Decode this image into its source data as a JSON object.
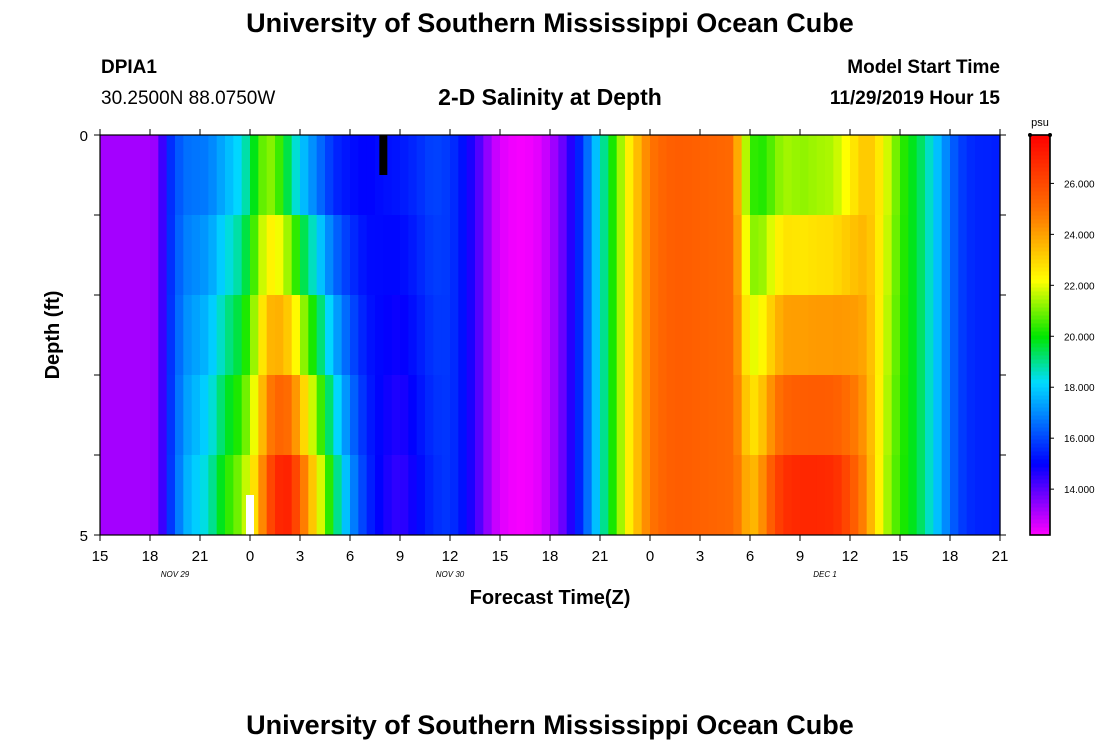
{
  "header": {
    "title": "University of Southern Mississippi Ocean Cube",
    "station_id": "DPIA1",
    "station_coords": "30.2500N 88.0750W",
    "plot_title": "2-D Salinity at Depth",
    "model_start_label": "Model Start Time",
    "model_start_value": "11/29/2019 Hour 15"
  },
  "footer": {
    "title": "University of Southern Mississippi Ocean Cube"
  },
  "chart_data": {
    "type": "heatmap",
    "title": "2-D Salinity at Depth",
    "xlabel": "Forecast Time(Z)",
    "ylabel": "Depth (ft)",
    "x_tick_labels": [
      "15",
      "18",
      "21",
      "0",
      "3",
      "6",
      "9",
      "12",
      "15",
      "18",
      "21",
      "0",
      "3",
      "6",
      "9",
      "12",
      "15",
      "18",
      "21"
    ],
    "x_hours": [
      0,
      3,
      6,
      9,
      12,
      15,
      18,
      21,
      24,
      27,
      30,
      33,
      36,
      39,
      42,
      45,
      48,
      51,
      54
    ],
    "date_labels": [
      {
        "label": "NOV 29",
        "hour": 4.5
      },
      {
        "label": "NOV 30",
        "hour": 21
      },
      {
        "label": "DEC 1",
        "hour": 43.5
      }
    ],
    "y_tick_labels": [
      "0",
      "5"
    ],
    "ylim": [
      0,
      5
    ],
    "depth_layers": 5,
    "colorbar": {
      "unit": "psu",
      "min": 12.2,
      "max": 27.9,
      "tick_values": [
        14.0,
        16.0,
        18.0,
        20.0,
        22.0,
        24.0,
        26.0
      ],
      "tick_labels": [
        "14.000",
        "16.000",
        "18.000",
        "20.000",
        "22.000",
        "24.000",
        "26.000"
      ]
    },
    "salinity_profile": {
      "hours": [
        0,
        3,
        3.5,
        4,
        4.5,
        5,
        6.5,
        7.5,
        8.5,
        9,
        9.5,
        10,
        10.5,
        11,
        11.5,
        12,
        13,
        14,
        15,
        16,
        17,
        18,
        19,
        20,
        21,
        22,
        23,
        23.5,
        24,
        24.5,
        25,
        25.5,
        26,
        26.5,
        27,
        27.5,
        28,
        28.5,
        29,
        29.5,
        30,
        30.5,
        31,
        31.5,
        32,
        32.5,
        33,
        33.5,
        34,
        34.5,
        35,
        36,
        37,
        38,
        38.5,
        39,
        39.5,
        40,
        40.5,
        41,
        41.5,
        42,
        43,
        44,
        44.5,
        45,
        45.5,
        46,
        46.5,
        47,
        47.5,
        48,
        48.5,
        49,
        49.5,
        50,
        50.5,
        51,
        51.5,
        52,
        52.5,
        53,
        54
      ],
      "surface": [
        13.2,
        13.2,
        13.4,
        15.3,
        16.0,
        16.6,
        16.8,
        17.6,
        18.3,
        19.3,
        20.4,
        21.3,
        21.0,
        20.0,
        19.0,
        18.0,
        16.8,
        15.6,
        15.2,
        15.0,
        15.2,
        15.3,
        15.6,
        16.0,
        15.8,
        15.0,
        13.8,
        13.0,
        12.6,
        12.4,
        12.3,
        12.3,
        12.4,
        12.6,
        13.0,
        13.5,
        14.2,
        15.0,
        16.0,
        17.2,
        18.4,
        19.6,
        20.8,
        22.0,
        23.0,
        24.0,
        24.8,
        25.2,
        25.4,
        25.5,
        25.5,
        25.4,
        25.3,
        25.2,
        22.5,
        20.6,
        20.2,
        20.4,
        21.0,
        21.4,
        21.4,
        21.2,
        21.4,
        21.5,
        22.0,
        22.4,
        23.0,
        23.4,
        23.0,
        22.2,
        21.4,
        20.6,
        20.0,
        19.6,
        19.0,
        18.2,
        17.4,
        16.6,
        16.0,
        15.7,
        15.5,
        15.5,
        15.4
      ],
      "bottom": [
        13.2,
        13.2,
        13.4,
        15.3,
        16.3,
        17.4,
        18.6,
        20.2,
        21.2,
        22.2,
        23.4,
        25.6,
        26.6,
        27.2,
        26.8,
        25.4,
        22.6,
        19.6,
        17.2,
        15.6,
        14.8,
        14.4,
        15.0,
        15.6,
        15.8,
        15.0,
        13.8,
        13.0,
        12.6,
        12.4,
        12.3,
        12.3,
        12.4,
        12.6,
        13.0,
        13.5,
        14.2,
        15.0,
        16.0,
        17.2,
        18.4,
        19.6,
        20.8,
        22.0,
        23.0,
        24.0,
        24.8,
        25.2,
        25.4,
        25.5,
        25.5,
        25.4,
        25.3,
        25.2,
        24.4,
        23.4,
        23.8,
        25.0,
        26.0,
        26.6,
        26.8,
        26.9,
        26.9,
        26.8,
        26.4,
        25.8,
        25.2,
        24.2,
        23.0,
        21.8,
        21.0,
        20.4,
        20.0,
        19.6,
        19.0,
        18.2,
        17.4,
        16.6,
        16.0,
        15.7,
        15.5,
        15.5,
        15.4
      ]
    },
    "markers": [
      {
        "hour": 17,
        "depth_from": 0,
        "depth_to": 0.5,
        "color": "#000000"
      },
      {
        "hour": 9,
        "depth_from": 4.5,
        "depth_to": 5,
        "color": "#ffffff"
      }
    ]
  }
}
